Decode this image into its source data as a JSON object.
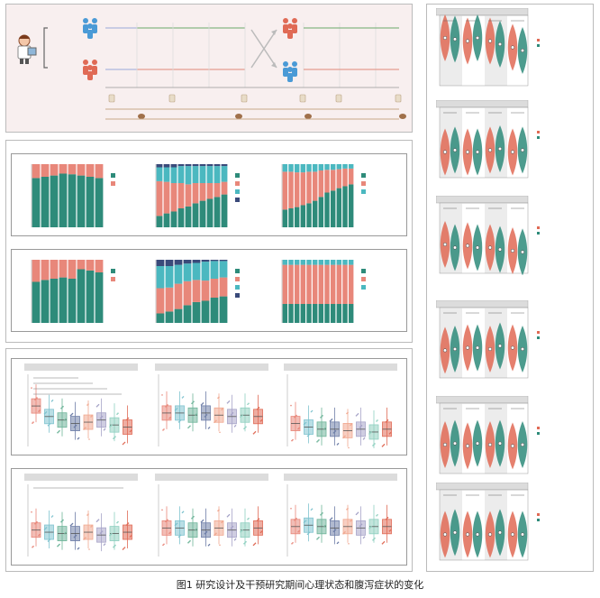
{
  "caption": "图1 研究设计及干预研究期间心理状态和腹泻症状的变化",
  "colors": {
    "teal": "#2e8b7a",
    "salmon": "#e8877a",
    "cyan": "#4bb8c0",
    "navy": "#3a4a7a",
    "coral": "#e06a55",
    "box_palette": [
      "#e8877a",
      "#7fc3cf",
      "#6fb59a",
      "#6f7fa8",
      "#f0a890",
      "#a7a4c8",
      "#8fd0c0",
      "#e06a55"
    ]
  },
  "design": {
    "icons": [
      "doctor-icon",
      "person-group-blue-icon",
      "person-group-red-icon",
      "crossover-icon",
      "toilet-icon",
      "stool-icon"
    ]
  },
  "chart_data": [
    {
      "type": "bar",
      "stacked": true,
      "panel": "b-top-1",
      "values": [
        [
          0.78,
          0.8,
          0.82,
          0.85,
          0.84,
          0.82,
          0.8,
          0.78
        ],
        [
          0.22,
          0.2,
          0.18,
          0.15,
          0.16,
          0.18,
          0.2,
          0.22
        ]
      ],
      "legend_colors": [
        "#2e8b7a",
        "#e8877a"
      ]
    },
    {
      "type": "bar",
      "stacked": true,
      "panel": "b-top-2",
      "values": [
        [
          0.18,
          0.22,
          0.25,
          0.3,
          0.33,
          0.38,
          0.42,
          0.45,
          0.48,
          0.52
        ],
        [
          0.55,
          0.5,
          0.45,
          0.4,
          0.35,
          0.32,
          0.28,
          0.25,
          0.22,
          0.2
        ],
        [
          0.22,
          0.23,
          0.25,
          0.27,
          0.29,
          0.27,
          0.27,
          0.27,
          0.27,
          0.25
        ],
        [
          0.05,
          0.05,
          0.05,
          0.03,
          0.03,
          0.03,
          0.03,
          0.03,
          0.03,
          0.03
        ]
      ],
      "legend_colors": [
        "#2e8b7a",
        "#e8877a",
        "#4bb8c0",
        "#3a4a7a"
      ]
    },
    {
      "type": "bar",
      "stacked": true,
      "panel": "b-top-3",
      "values": [
        [
          0.28,
          0.3,
          0.32,
          0.35,
          0.38,
          0.42,
          0.48,
          0.55,
          0.58,
          0.62,
          0.65,
          0.68
        ],
        [
          0.6,
          0.58,
          0.55,
          0.52,
          0.5,
          0.46,
          0.42,
          0.36,
          0.33,
          0.3,
          0.28,
          0.25
        ],
        [
          0.12,
          0.12,
          0.13,
          0.13,
          0.12,
          0.12,
          0.1,
          0.09,
          0.09,
          0.08,
          0.07,
          0.07
        ]
      ],
      "legend_colors": [
        "#2e8b7a",
        "#e8877a",
        "#4bb8c0"
      ]
    },
    {
      "type": "bar",
      "stacked": true,
      "panel": "b-bot-1",
      "values": [
        [
          0.65,
          0.68,
          0.7,
          0.72,
          0.7,
          0.85,
          0.83,
          0.8
        ],
        [
          0.35,
          0.32,
          0.3,
          0.28,
          0.3,
          0.15,
          0.17,
          0.2
        ]
      ],
      "legend_colors": [
        "#2e8b7a",
        "#e8877a"
      ]
    },
    {
      "type": "bar",
      "stacked": true,
      "panel": "b-bot-2",
      "values": [
        [
          0.15,
          0.18,
          0.22,
          0.28,
          0.33,
          0.35,
          0.4,
          0.42
        ],
        [
          0.4,
          0.38,
          0.4,
          0.38,
          0.35,
          0.32,
          0.3,
          0.3
        ],
        [
          0.35,
          0.34,
          0.3,
          0.28,
          0.27,
          0.3,
          0.28,
          0.26
        ],
        [
          0.1,
          0.1,
          0.08,
          0.06,
          0.05,
          0.03,
          0.02,
          0.02
        ]
      ],
      "legend_colors": [
        "#2e8b7a",
        "#e8877a",
        "#4bb8c0",
        "#3a4a7a"
      ]
    },
    {
      "type": "bar",
      "stacked": true,
      "panel": "b-bot-3",
      "values": [
        [
          0.3,
          0.3,
          0.3,
          0.3,
          0.3,
          0.3,
          0.3,
          0.3,
          0.3,
          0.3,
          0.3,
          0.3
        ],
        [
          0.62,
          0.62,
          0.62,
          0.62,
          0.62,
          0.62,
          0.62,
          0.62,
          0.62,
          0.62,
          0.62,
          0.62
        ],
        [
          0.08,
          0.08,
          0.08,
          0.08,
          0.08,
          0.08,
          0.08,
          0.08,
          0.08,
          0.08,
          0.08,
          0.08
        ]
      ],
      "legend_colors": [
        "#2e8b7a",
        "#e8877a",
        "#4bb8c0"
      ]
    },
    {
      "type": "box",
      "panel": "c-top-1",
      "medians": [
        0.55,
        0.4,
        0.35,
        0.3,
        0.32,
        0.35,
        0.28,
        0.25
      ]
    },
    {
      "type": "box",
      "panel": "c-top-2",
      "medians": [
        0.45,
        0.45,
        0.42,
        0.45,
        0.42,
        0.4,
        0.42,
        0.4
      ]
    },
    {
      "type": "box",
      "panel": "c-top-3",
      "medians": [
        0.3,
        0.25,
        0.22,
        0.22,
        0.2,
        0.22,
        0.18,
        0.22
      ]
    },
    {
      "type": "box",
      "panel": "c-bot-1",
      "medians": [
        0.35,
        0.32,
        0.3,
        0.3,
        0.32,
        0.28,
        0.3,
        0.32
      ]
    },
    {
      "type": "box",
      "panel": "c-bot-2",
      "medians": [
        0.38,
        0.38,
        0.35,
        0.35,
        0.38,
        0.35,
        0.35,
        0.38
      ]
    },
    {
      "type": "box",
      "panel": "c-bot-3",
      "medians": [
        0.4,
        0.42,
        0.4,
        0.38,
        0.4,
        0.38,
        0.4,
        0.4
      ]
    },
    {
      "type": "violin",
      "panel": "d-1",
      "medians": [
        0.7,
        0.68,
        0.65,
        0.7,
        0.65,
        0.6,
        0.55,
        0.5
      ]
    },
    {
      "type": "violin",
      "panel": "d-2",
      "medians": [
        0.35,
        0.38,
        0.35,
        0.35,
        0.38,
        0.4,
        0.35,
        0.38
      ]
    },
    {
      "type": "violin",
      "panel": "d-3",
      "medians": [
        0.4,
        0.35,
        0.38,
        0.35,
        0.35,
        0.32,
        0.3,
        0.28
      ]
    },
    {
      "type": "violin",
      "panel": "d-4",
      "medians": [
        0.38,
        0.4,
        0.42,
        0.42,
        0.4,
        0.45,
        0.42,
        0.4
      ]
    },
    {
      "type": "violin",
      "panel": "d-5",
      "medians": [
        0.4,
        0.42,
        0.38,
        0.42,
        0.4,
        0.42,
        0.38,
        0.4
      ]
    },
    {
      "type": "violin",
      "panel": "d-6",
      "medians": [
        0.35,
        0.38,
        0.35,
        0.35,
        0.35,
        0.38,
        0.35,
        0.35
      ]
    }
  ]
}
